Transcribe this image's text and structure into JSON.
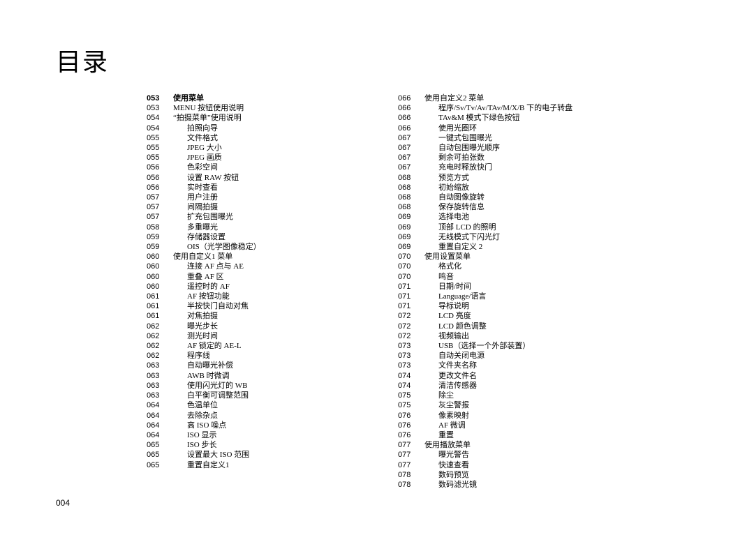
{
  "page": {
    "title": "目录",
    "number": "004",
    "background_color": "#ffffff",
    "text_color": "#000000",
    "title_fontsize": 36,
    "body_fontsize": 11,
    "line_height": 14.2
  },
  "columns": [
    {
      "entries": [
        {
          "page": "053",
          "label": "使用菜单",
          "level": 0
        },
        {
          "page": "053",
          "label": "MENU 按钮使用说明",
          "level": 1
        },
        {
          "page": "054",
          "label": "“拍摄菜单”使用说明",
          "level": 1
        },
        {
          "page": "054",
          "label": "拍照向导",
          "level": 2
        },
        {
          "page": "055",
          "label": "文件格式",
          "level": 2
        },
        {
          "page": "055",
          "label": "JPEG 大小",
          "level": 2
        },
        {
          "page": "055",
          "label": "JPEG 画质",
          "level": 2
        },
        {
          "page": "056",
          "label": "色彩空间",
          "level": 2
        },
        {
          "page": "056",
          "label": "设置 RAW 按钮",
          "level": 2
        },
        {
          "page": "056",
          "label": "实时查看",
          "level": 2
        },
        {
          "page": "057",
          "label": "用户注册",
          "level": 2
        },
        {
          "page": "057",
          "label": "间隔拍摄",
          "level": 2
        },
        {
          "page": "057",
          "label": "扩充包围曝光",
          "level": 2
        },
        {
          "page": "058",
          "label": "多重曝光",
          "level": 2
        },
        {
          "page": "059",
          "label": "存储器设置",
          "level": 2
        },
        {
          "page": "059",
          "label": "OIS（光学图像稳定）",
          "level": 2
        },
        {
          "page": "060",
          "label": "使用自定义1 菜单",
          "level": 1
        },
        {
          "page": "060",
          "label": "连接 AF 点与 AE",
          "level": 2
        },
        {
          "page": "060",
          "label": "重叠 AF 区",
          "level": 2
        },
        {
          "page": "060",
          "label": "遥控时的 AF",
          "level": 2
        },
        {
          "page": "061",
          "label": "AF 按钮功能",
          "level": 2
        },
        {
          "page": "061",
          "label": "半按快门自动对焦",
          "level": 2
        },
        {
          "page": "061",
          "label": "对焦拍摄",
          "level": 2
        },
        {
          "page": "062",
          "label": "曝光步长",
          "level": 2
        },
        {
          "page": "062",
          "label": "测光时间",
          "level": 2
        },
        {
          "page": "062",
          "label": "AF 锁定的 AE-L",
          "level": 2
        },
        {
          "page": "062",
          "label": "程序线",
          "level": 2
        },
        {
          "page": "063",
          "label": "自动曝光补偿",
          "level": 2
        },
        {
          "page": "063",
          "label": "AWB 时微调",
          "level": 2
        },
        {
          "page": "063",
          "label": "使用闪光灯的 WB",
          "level": 2
        },
        {
          "page": "063",
          "label": "白平衡可调整范围",
          "level": 2
        },
        {
          "page": "064",
          "label": "色温单位",
          "level": 2
        },
        {
          "page": "064",
          "label": "去除杂点",
          "level": 2
        },
        {
          "page": "064",
          "label": "高 ISO 噪点",
          "level": 2
        },
        {
          "page": "064",
          "label": "ISO 显示",
          "level": 2
        },
        {
          "page": "065",
          "label": "ISO 步长",
          "level": 2
        },
        {
          "page": "065",
          "label": "设置最大 ISO 范围",
          "level": 2
        },
        {
          "page": "065",
          "label": "重置自定义1",
          "level": 2
        }
      ]
    },
    {
      "entries": [
        {
          "page": "066",
          "label": "使用自定义2 菜单",
          "level": 1
        },
        {
          "page": "066",
          "label": "程序/Sv/Tv/Av/TAv/M/X/B 下的电子转盘",
          "level": 2
        },
        {
          "page": "066",
          "label": "TAv&M 模式下绿色按钮",
          "level": 2
        },
        {
          "page": "066",
          "label": "使用光圈环",
          "level": 2
        },
        {
          "page": "067",
          "label": "一键式包围曝光",
          "level": 2
        },
        {
          "page": "067",
          "label": "自动包围曝光顺序",
          "level": 2
        },
        {
          "page": "067",
          "label": "剩余可拍张数",
          "level": 2
        },
        {
          "page": "067",
          "label": "充电时释放快门",
          "level": 2
        },
        {
          "page": "068",
          "label": "预览方式",
          "level": 2
        },
        {
          "page": "068",
          "label": "初始缩放",
          "level": 2
        },
        {
          "page": "068",
          "label": "自动图像旋转",
          "level": 2
        },
        {
          "page": "068",
          "label": "保存旋转信息",
          "level": 2
        },
        {
          "page": "069",
          "label": "选择电池",
          "level": 2
        },
        {
          "page": "069",
          "label": "顶部 LCD 的照明",
          "level": 2
        },
        {
          "page": "069",
          "label": "无线模式下闪光灯",
          "level": 2
        },
        {
          "page": "069",
          "label": "重置自定义 2",
          "level": 2
        },
        {
          "page": "070",
          "label": "使用设置菜单",
          "level": 1
        },
        {
          "page": "070",
          "label": "格式化",
          "level": 2
        },
        {
          "page": "070",
          "label": "鸣音",
          "level": 2
        },
        {
          "page": "071",
          "label": "日期/时间",
          "level": 2
        },
        {
          "page": "071",
          "label": "Language/语言",
          "level": 2
        },
        {
          "page": "071",
          "label": "导标说明",
          "level": 2
        },
        {
          "page": "072",
          "label": "LCD 亮度",
          "level": 2
        },
        {
          "page": "072",
          "label": "LCD 颜色调整",
          "level": 2
        },
        {
          "page": "072",
          "label": "视频输出",
          "level": 2
        },
        {
          "page": "073",
          "label": "USB（选择一个外部装置）",
          "level": 2
        },
        {
          "page": "073",
          "label": "自动关闭电源",
          "level": 2
        },
        {
          "page": "073",
          "label": "文件夹名称",
          "level": 2
        },
        {
          "page": "074",
          "label": "更改文件名",
          "level": 2
        },
        {
          "page": "074",
          "label": "清洁传感器",
          "level": 2
        },
        {
          "page": "075",
          "label": "除尘",
          "level": 2
        },
        {
          "page": "075",
          "label": "灰尘警报",
          "level": 2
        },
        {
          "page": "076",
          "label": "像素映射",
          "level": 2
        },
        {
          "page": "076",
          "label": "AF 微调",
          "level": 2
        },
        {
          "page": "076",
          "label": "重置",
          "level": 2
        },
        {
          "page": "077",
          "label": "使用播放菜单",
          "level": 1
        },
        {
          "page": "077",
          "label": "曝光警告",
          "level": 2
        },
        {
          "page": "077",
          "label": "快速查看",
          "level": 2
        },
        {
          "page": "078",
          "label": "数码预览",
          "level": 2
        },
        {
          "page": "078",
          "label": "数码滤光镜",
          "level": 2
        }
      ]
    }
  ]
}
